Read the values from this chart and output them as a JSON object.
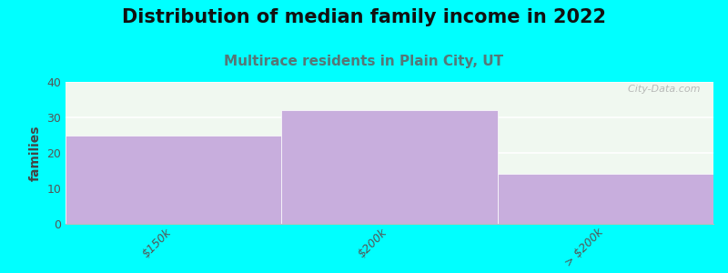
{
  "title": "Distribution of median family income in 2022",
  "subtitle": "Multirace residents in Plain City, UT",
  "categories": [
    "$150k",
    "$200k",
    "> $200k"
  ],
  "values": [
    25,
    32,
    14
  ],
  "bar_color": "#c8aedd",
  "bar_edgecolor": "#ffffff",
  "background_color": "#00ffff",
  "plot_bg_color": "#f0f8f0",
  "ylabel": "families",
  "ylim": [
    0,
    40
  ],
  "yticks": [
    0,
    10,
    20,
    30,
    40
  ],
  "title_fontsize": 15,
  "subtitle_fontsize": 11,
  "subtitle_color": "#557777",
  "ylabel_fontsize": 10,
  "tick_fontsize": 9,
  "watermark": "  City-Data.com",
  "fig_width": 8.0,
  "fig_height": 3.0
}
